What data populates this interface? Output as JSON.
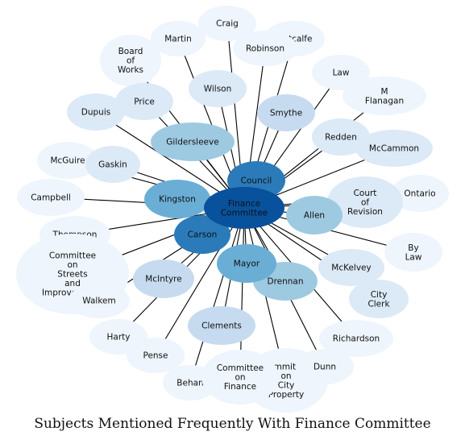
{
  "title": "Subjects Mentioned Frequently With Finance Committee",
  "center": {
    "label": "Finance Committee",
    "lines": [
      "Finance",
      "Committee"
    ]
  },
  "nodes": [
    {
      "id": "craig",
      "lines": [
        "Craig"
      ],
      "tone": "lightest"
    },
    {
      "id": "martin",
      "lines": [
        "Martin"
      ],
      "tone": "lightest"
    },
    {
      "id": "metcalfe",
      "lines": [
        "Metcalfe"
      ],
      "tone": "lightest"
    },
    {
      "id": "robinson",
      "lines": [
        "Robinson"
      ],
      "tone": "lightest"
    },
    {
      "id": "board-of-works",
      "lines": [
        "Board",
        "of",
        "Works"
      ],
      "tone": "lightest"
    },
    {
      "id": "law",
      "lines": [
        "Law"
      ],
      "tone": "lightest"
    },
    {
      "id": "m-flanagan",
      "lines": [
        "M",
        "Flanagan"
      ],
      "tone": "lightest"
    },
    {
      "id": "wilson",
      "lines": [
        "Wilson"
      ],
      "tone": "lighter"
    },
    {
      "id": "price",
      "lines": [
        "Price"
      ],
      "tone": "lighter"
    },
    {
      "id": "dupuis",
      "lines": [
        "Dupuis"
      ],
      "tone": "lighter"
    },
    {
      "id": "smythe",
      "lines": [
        "Smythe"
      ],
      "tone": "light"
    },
    {
      "id": "redden",
      "lines": [
        "Redden"
      ],
      "tone": "lighter"
    },
    {
      "id": "mccammon",
      "lines": [
        "McCammon"
      ],
      "tone": "lighter"
    },
    {
      "id": "gildersleeve",
      "lines": [
        "Gildersleeve"
      ],
      "tone": "mid"
    },
    {
      "id": "mcguire",
      "lines": [
        "McGuire"
      ],
      "tone": "lightest"
    },
    {
      "id": "gaskin",
      "lines": [
        "Gaskin"
      ],
      "tone": "lighter"
    },
    {
      "id": "council",
      "lines": [
        "Council"
      ],
      "tone": "strong"
    },
    {
      "id": "court-of-revision",
      "lines": [
        "Court",
        "of",
        "Revision"
      ],
      "tone": "lighter"
    },
    {
      "id": "ontario",
      "lines": [
        "Ontario"
      ],
      "tone": "lightest"
    },
    {
      "id": "campbell",
      "lines": [
        "Campbell"
      ],
      "tone": "lightest"
    },
    {
      "id": "kingston",
      "lines": [
        "Kingston"
      ],
      "tone": "midstrong"
    },
    {
      "id": "allen",
      "lines": [
        "Allen"
      ],
      "tone": "mid"
    },
    {
      "id": "thompson",
      "lines": [
        "Thompson"
      ],
      "tone": "lightest"
    },
    {
      "id": "carson",
      "lines": [
        "Carson"
      ],
      "tone": "strong"
    },
    {
      "id": "by-law",
      "lines": [
        "By",
        "Law"
      ],
      "tone": "lightest"
    },
    {
      "id": "committee-on-streets",
      "lines": [
        "Committee",
        "on",
        "Streets",
        "and",
        "Improvements"
      ],
      "tone": "lightest"
    },
    {
      "id": "mayor",
      "lines": [
        "Mayor"
      ],
      "tone": "midstrong"
    },
    {
      "id": "mckelvey",
      "lines": [
        "McKelvey"
      ],
      "tone": "lighter"
    },
    {
      "id": "mcintyre",
      "lines": [
        "McIntyre"
      ],
      "tone": "light"
    },
    {
      "id": "drennan",
      "lines": [
        "Drennan"
      ],
      "tone": "mid"
    },
    {
      "id": "walkem",
      "lines": [
        "Walkem"
      ],
      "tone": "lightest"
    },
    {
      "id": "city-clerk",
      "lines": [
        "City",
        "Clerk"
      ],
      "tone": "lighter"
    },
    {
      "id": "harty",
      "lines": [
        "Harty"
      ],
      "tone": "lightest"
    },
    {
      "id": "clements",
      "lines": [
        "Clements"
      ],
      "tone": "light"
    },
    {
      "id": "richardson",
      "lines": [
        "Richardson"
      ],
      "tone": "lightest"
    },
    {
      "id": "pense",
      "lines": [
        "Pense"
      ],
      "tone": "lightest"
    },
    {
      "id": "committee-on-property",
      "lines": [
        "Committee",
        "on",
        "City",
        "Property"
      ],
      "tone": "lightest"
    },
    {
      "id": "dunn",
      "lines": [
        "Dunn"
      ],
      "tone": "lightest"
    },
    {
      "id": "behan",
      "lines": [
        "Behan"
      ],
      "tone": "lightest"
    },
    {
      "id": "committee-on-finance",
      "lines": [
        "Committee",
        "on",
        "Finance"
      ],
      "tone": "lightest"
    }
  ],
  "tones": {
    "center": "#08519c",
    "strong": "#2b7bba",
    "midstrong": "#6aaed6",
    "mid": "#9ecae1",
    "light": "#c6dbef",
    "lighter": "#dce9f6",
    "lightest": "#eef5fc"
  },
  "edge_color": "#000000"
}
